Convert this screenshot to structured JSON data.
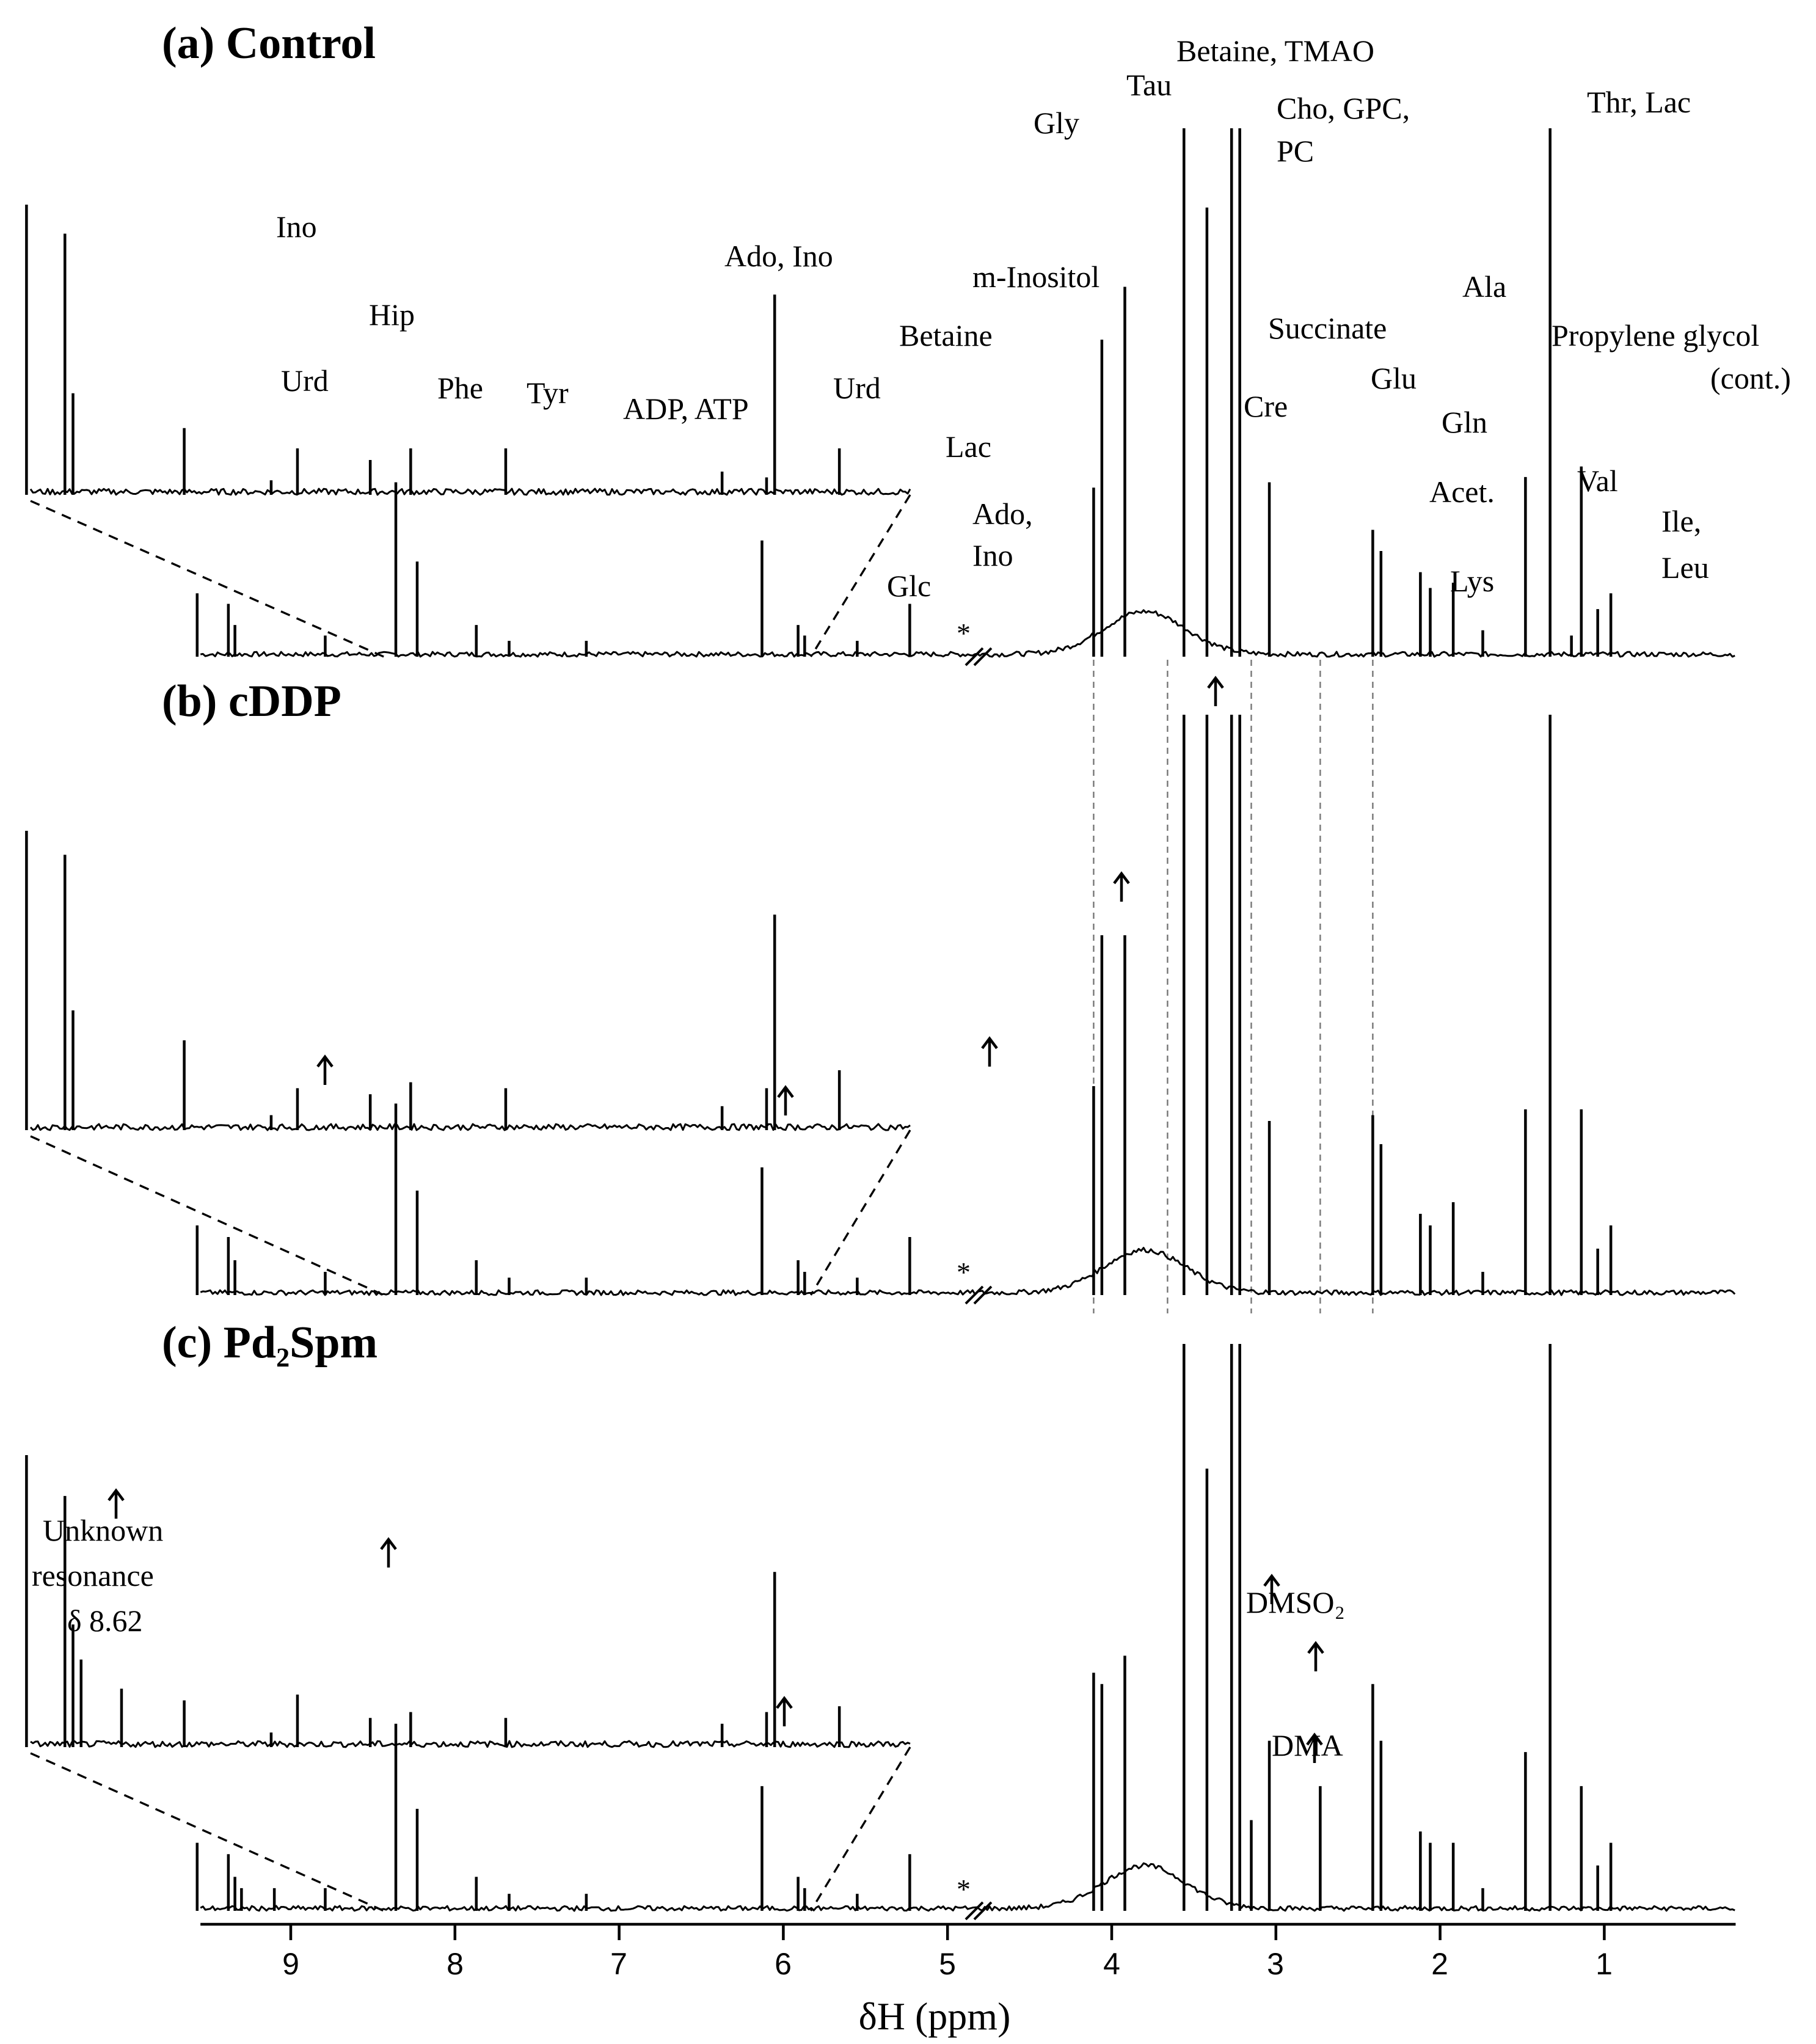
{
  "chart_data": {
    "type": "line",
    "title": "",
    "xlabel": "δH (ppm)",
    "x_ticks": [
      9,
      8,
      7,
      6,
      5,
      4,
      3,
      2,
      1
    ],
    "x_range": [
      9.55,
      0.2
    ],
    "axis_break_at": 4.8,
    "axis_break_marker": "*",
    "zoom_range": [
      9.55,
      5.2
    ],
    "guide_lines_ppm": [
      4.11,
      3.66,
      3.15,
      2.73,
      2.41
    ],
    "panels": [
      {
        "title": "(a) Control",
        "peaks": [
          {
            "ppm": 9.57,
            "height": 0.12,
            "zoom": 1.0
          },
          {
            "ppm": 9.38,
            "height": 0.1,
            "zoom": 0.9
          },
          {
            "ppm": 9.34,
            "height": 0.06,
            "zoom": 0.35
          },
          {
            "ppm": 8.79,
            "height": 0.04,
            "zoom": 0.23
          },
          {
            "ppm": 8.36,
            "height": 0.33,
            "zoom": 0.05
          },
          {
            "ppm": 8.23,
            "height": 0.18,
            "zoom": 0.16
          },
          {
            "ppm": 7.87,
            "height": 0.06,
            "zoom": 0.12
          },
          {
            "ppm": 7.67,
            "height": 0.03,
            "zoom": 0.16
          },
          {
            "ppm": 7.2,
            "height": 0.03,
            "zoom": 0.16
          },
          {
            "ppm": 6.13,
            "height": 0.22,
            "zoom": 0.08
          },
          {
            "ppm": 5.91,
            "height": 0.06,
            "zoom": 0.06
          },
          {
            "ppm": 5.87,
            "height": 0.04,
            "zoom": 0.69
          },
          {
            "ppm": 5.55,
            "height": 0.03,
            "zoom": 0.16
          },
          {
            "ppm": 5.23,
            "height": 0.1,
            "zoom": 0.0
          },
          {
            "ppm": 4.11,
            "height": 0.32,
            "zoom": 0
          },
          {
            "ppm": 4.06,
            "height": 0.6,
            "zoom": 0
          },
          {
            "ppm": 3.92,
            "height": 0.7,
            "zoom": 0
          },
          {
            "ppm": 3.56,
            "height": 1.0,
            "zoom": 0
          },
          {
            "ppm": 3.42,
            "height": 0.85,
            "zoom": 0
          },
          {
            "ppm": 3.27,
            "height": 1.0,
            "zoom": 0
          },
          {
            "ppm": 3.22,
            "height": 1.0,
            "zoom": 0
          },
          {
            "ppm": 3.04,
            "height": 0.33,
            "zoom": 0
          },
          {
            "ppm": 2.41,
            "height": 0.24,
            "zoom": 0
          },
          {
            "ppm": 2.36,
            "height": 0.2,
            "zoom": 0
          },
          {
            "ppm": 2.12,
            "height": 0.16,
            "zoom": 0
          },
          {
            "ppm": 2.06,
            "height": 0.13,
            "zoom": 0
          },
          {
            "ppm": 1.92,
            "height": 0.14,
            "zoom": 0
          },
          {
            "ppm": 1.74,
            "height": 0.05,
            "zoom": 0
          },
          {
            "ppm": 1.48,
            "height": 0.34,
            "zoom": 0
          },
          {
            "ppm": 1.33,
            "height": 1.0,
            "zoom": 0
          },
          {
            "ppm": 1.2,
            "height": 0.04,
            "zoom": 0
          },
          {
            "ppm": 1.14,
            "height": 0.36,
            "zoom": 0
          },
          {
            "ppm": 1.04,
            "height": 0.09,
            "zoom": 0
          },
          {
            "ppm": 0.96,
            "height": 0.12,
            "zoom": 0
          }
        ],
        "labels": [
          {
            "text": "Ino",
            "ppm": 9.34
          },
          {
            "text": "Urd",
            "ppm": 8.79
          },
          {
            "text": "Hip",
            "ppm": 8.5
          },
          {
            "text": "Phe",
            "ppm": 7.95
          },
          {
            "text": "Tyr",
            "ppm": 7.45
          },
          {
            "text": "ADP, ATP",
            "ppm": 6.3
          },
          {
            "text": "Ado, Ino",
            "ppm": 5.75
          },
          {
            "text": "Urd",
            "ppm": 5.55
          },
          {
            "text": "Glc",
            "ppm": 5.23
          },
          {
            "text": "Ado,",
            "ppm": 4.4
          },
          {
            "text": "Ino",
            "ppm": 4.4
          },
          {
            "text": "Lac",
            "ppm": 4.11
          },
          {
            "text": "Betaine",
            "ppm": 3.92
          },
          {
            "text": "m-Inositol",
            "ppm": 3.7
          },
          {
            "text": "Gly",
            "ppm": 3.56
          },
          {
            "text": "Tau",
            "ppm": 3.42
          },
          {
            "text": "Betaine, TMAO",
            "ppm": 3.27
          },
          {
            "text": "Cho, GPC,",
            "ppm": 3.2
          },
          {
            "text": "PC",
            "ppm": 3.2
          },
          {
            "text": "Cre",
            "ppm": 3.04
          },
          {
            "text": "Succinate",
            "ppm": 2.41
          },
          {
            "text": "Glu",
            "ppm": 2.1
          },
          {
            "text": "Gln",
            "ppm": 2.02
          },
          {
            "text": "Acet.",
            "ppm": 1.92
          },
          {
            "text": "Lys",
            "ppm": 1.74
          },
          {
            "text": "Ala",
            "ppm": 1.48
          },
          {
            "text": "Thr, Lac",
            "ppm": 1.33
          },
          {
            "text": "Propylene glycol",
            "ppm": 1.14
          },
          {
            "text": "(cont.)",
            "ppm": 1.14
          },
          {
            "text": "Val",
            "ppm": 1.04
          },
          {
            "text": "Ile,",
            "ppm": 0.96
          },
          {
            "text": "Leu",
            "ppm": 0.96
          }
        ]
      },
      {
        "title": "(b) cDDP",
        "peaks": [
          {
            "ppm": 9.57,
            "height": 0.12,
            "zoom": 1.0
          },
          {
            "ppm": 9.38,
            "height": 0.1,
            "zoom": 0.92
          },
          {
            "ppm": 9.34,
            "height": 0.06,
            "zoom": 0.4
          },
          {
            "ppm": 8.79,
            "height": 0.04,
            "zoom": 0.3
          },
          {
            "ppm": 8.36,
            "height": 0.33,
            "zoom": 0.05
          },
          {
            "ppm": 8.23,
            "height": 0.18,
            "zoom": 0.14
          },
          {
            "ppm": 7.87,
            "height": 0.06,
            "zoom": 0.12
          },
          {
            "ppm": 7.67,
            "height": 0.03,
            "zoom": 0.16
          },
          {
            "ppm": 7.2,
            "height": 0.03,
            "zoom": 0.14
          },
          {
            "ppm": 6.13,
            "height": 0.22,
            "zoom": 0.08
          },
          {
            "ppm": 5.91,
            "height": 0.06,
            "zoom": 0.14
          },
          {
            "ppm": 5.87,
            "height": 0.04,
            "zoom": 0.72
          },
          {
            "ppm": 5.55,
            "height": 0.03,
            "zoom": 0.2
          },
          {
            "ppm": 5.23,
            "height": 0.1,
            "zoom": 0.0
          },
          {
            "ppm": 4.11,
            "height": 0.36,
            "zoom": 0
          },
          {
            "ppm": 4.06,
            "height": 0.62,
            "zoom": 0
          },
          {
            "ppm": 3.92,
            "height": 0.62,
            "zoom": 0
          },
          {
            "ppm": 3.56,
            "height": 1.0,
            "zoom": 0
          },
          {
            "ppm": 3.42,
            "height": 1.0,
            "zoom": 0
          },
          {
            "ppm": 3.27,
            "height": 1.0,
            "zoom": 0
          },
          {
            "ppm": 3.22,
            "height": 1.0,
            "zoom": 0
          },
          {
            "ppm": 3.04,
            "height": 0.3,
            "zoom": 0
          },
          {
            "ppm": 2.41,
            "height": 0.31,
            "zoom": 0
          },
          {
            "ppm": 2.36,
            "height": 0.26,
            "zoom": 0
          },
          {
            "ppm": 2.12,
            "height": 0.14,
            "zoom": 0
          },
          {
            "ppm": 2.06,
            "height": 0.12,
            "zoom": 0
          },
          {
            "ppm": 1.92,
            "height": 0.16,
            "zoom": 0
          },
          {
            "ppm": 1.74,
            "height": 0.04,
            "zoom": 0
          },
          {
            "ppm": 1.48,
            "height": 0.32,
            "zoom": 0
          },
          {
            "ppm": 1.33,
            "height": 1.0,
            "zoom": 0
          },
          {
            "ppm": 1.14,
            "height": 0.32,
            "zoom": 0
          },
          {
            "ppm": 1.04,
            "height": 0.08,
            "zoom": 0
          },
          {
            "ppm": 0.96,
            "height": 0.12,
            "zoom": 0
          }
        ],
        "labels": []
      },
      {
        "title": "(c) Pd₂Spm",
        "peaks": [
          {
            "ppm": 9.57,
            "height": 0.12,
            "zoom": 1.0
          },
          {
            "ppm": 9.38,
            "height": 0.1,
            "zoom": 0.86
          },
          {
            "ppm": 9.34,
            "height": 0.06,
            "zoom": 0.42
          },
          {
            "ppm": 9.3,
            "height": 0.04,
            "zoom": 0.3
          },
          {
            "ppm": 9.1,
            "height": 0.04,
            "zoom": 0.2
          },
          {
            "ppm": 8.79,
            "height": 0.04,
            "zoom": 0.16
          },
          {
            "ppm": 8.36,
            "height": 0.33,
            "zoom": 0.05
          },
          {
            "ppm": 8.23,
            "height": 0.18,
            "zoom": 0.18
          },
          {
            "ppm": 7.87,
            "height": 0.06,
            "zoom": 0.1
          },
          {
            "ppm": 7.67,
            "height": 0.03,
            "zoom": 0.12
          },
          {
            "ppm": 7.2,
            "height": 0.03,
            "zoom": 0.1
          },
          {
            "ppm": 6.13,
            "height": 0.22,
            "zoom": 0.08
          },
          {
            "ppm": 5.91,
            "height": 0.06,
            "zoom": 0.12
          },
          {
            "ppm": 5.87,
            "height": 0.04,
            "zoom": 0.6
          },
          {
            "ppm": 5.55,
            "height": 0.03,
            "zoom": 0.14
          },
          {
            "ppm": 5.23,
            "height": 0.1,
            "zoom": 0.0
          },
          {
            "ppm": 4.11,
            "height": 0.42,
            "zoom": 0
          },
          {
            "ppm": 4.06,
            "height": 0.4,
            "zoom": 0
          },
          {
            "ppm": 3.92,
            "height": 0.45,
            "zoom": 0
          },
          {
            "ppm": 3.56,
            "height": 1.0,
            "zoom": 0
          },
          {
            "ppm": 3.42,
            "height": 0.78,
            "zoom": 0
          },
          {
            "ppm": 3.27,
            "height": 1.0,
            "zoom": 0
          },
          {
            "ppm": 3.22,
            "height": 1.0,
            "zoom": 0
          },
          {
            "ppm": 3.15,
            "height": 0.16,
            "zoom": 0
          },
          {
            "ppm": 3.04,
            "height": 0.3,
            "zoom": 0
          },
          {
            "ppm": 2.73,
            "height": 0.22,
            "zoom": 0
          },
          {
            "ppm": 2.41,
            "height": 0.4,
            "zoom": 0
          },
          {
            "ppm": 2.36,
            "height": 0.3,
            "zoom": 0
          },
          {
            "ppm": 2.12,
            "height": 0.14,
            "zoom": 0
          },
          {
            "ppm": 2.06,
            "height": 0.12,
            "zoom": 0
          },
          {
            "ppm": 1.92,
            "height": 0.12,
            "zoom": 0
          },
          {
            "ppm": 1.74,
            "height": 0.04,
            "zoom": 0
          },
          {
            "ppm": 1.48,
            "height": 0.28,
            "zoom": 0
          },
          {
            "ppm": 1.33,
            "height": 1.0,
            "zoom": 0
          },
          {
            "ppm": 1.14,
            "height": 0.22,
            "zoom": 0
          },
          {
            "ppm": 1.04,
            "height": 0.08,
            "zoom": 0
          },
          {
            "ppm": 0.96,
            "height": 0.12,
            "zoom": 0
          }
        ],
        "labels": [
          {
            "text": "Unknown",
            "ppm": 9.2
          },
          {
            "text": "resonance",
            "ppm": 9.2
          },
          {
            "text": "δ 8.62",
            "ppm": 9.2
          },
          {
            "text": "DMSO₂",
            "ppm": 3.15
          },
          {
            "text": "DMA",
            "ppm": 2.73
          }
        ]
      }
    ]
  }
}
